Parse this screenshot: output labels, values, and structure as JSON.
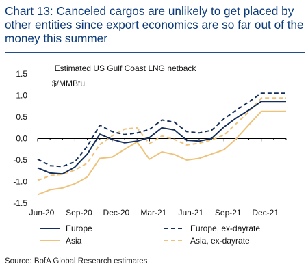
{
  "title": "Chart 13: Canceled cargos are unlikely to get placed by other entities since export economics are so far out of the money this summer",
  "source": "Source: BofA Global Research estimates",
  "colors": {
    "navy": "#142f5c",
    "tan": "#eec27a",
    "title": "#0b3a7a"
  },
  "chart_data": {
    "type": "line",
    "title": "Estimated US Gulf Coast LNG netback",
    "ylabel": "$/MMBtu",
    "ylim": [
      -1.5,
      1.5
    ],
    "yticks": [
      1.5,
      1.0,
      0.5,
      0.0,
      -0.5,
      -1.0,
      -1.5
    ],
    "ytick_labels": [
      "1.5",
      "1.0",
      "0.5",
      "0.0",
      "-0.5",
      "-1.0",
      "-1.5"
    ],
    "x": [
      "Jun-20",
      "Jul-20",
      "Aug-20",
      "Sep-20",
      "Oct-20",
      "Nov-20",
      "Dec-20",
      "Jan-21",
      "Feb-21",
      "Mar-21",
      "Apr-21",
      "May-21",
      "Jun-21",
      "Jul-21",
      "Aug-21",
      "Sep-21",
      "Oct-21",
      "Nov-21",
      "Dec-21",
      "Jan-22",
      "Feb-22"
    ],
    "xtick_labels": [
      "Jun-20",
      "Sep-20",
      "Dec-20",
      "Mar-21",
      "Jun-21",
      "Sep-21",
      "Dec-21"
    ],
    "series": [
      {
        "name": "Europe",
        "color": "#142f5c",
        "dash": false,
        "values": [
          -0.68,
          -0.8,
          -0.82,
          -0.66,
          -0.36,
          0.1,
          -0.02,
          -0.1,
          -0.06,
          0.02,
          0.25,
          0.2,
          -0.04,
          -0.06,
          0.0,
          0.27,
          0.48,
          0.66,
          0.86,
          0.86,
          0.86
        ]
      },
      {
        "name": "Europe, ex-dayrate",
        "color": "#142f5c",
        "dash": true,
        "values": [
          -0.48,
          -0.63,
          -0.65,
          -0.54,
          -0.18,
          0.31,
          0.16,
          0.09,
          0.13,
          0.21,
          0.43,
          0.38,
          0.16,
          0.13,
          0.19,
          0.46,
          0.66,
          0.85,
          1.05,
          1.05,
          1.05
        ]
      },
      {
        "name": "Asia",
        "color": "#eec27a",
        "dash": false,
        "values": [
          -1.3,
          -1.19,
          -1.15,
          -1.05,
          -0.89,
          -0.46,
          -0.43,
          -0.25,
          -0.08,
          -0.48,
          -0.31,
          -0.37,
          -0.5,
          -0.46,
          -0.36,
          -0.26,
          0.0,
          0.32,
          0.63,
          0.63,
          0.63
        ]
      },
      {
        "name": "Asia, ex-dayrate",
        "color": "#eec27a",
        "dash": true,
        "values": [
          -0.97,
          -0.86,
          -0.83,
          -0.73,
          -0.57,
          -0.14,
          0.06,
          0.22,
          0.25,
          -0.12,
          0.06,
          -0.02,
          -0.15,
          -0.11,
          -0.03,
          0.08,
          0.35,
          0.62,
          0.94,
          0.94,
          0.94
        ]
      }
    ],
    "legend_position": "bottom"
  }
}
